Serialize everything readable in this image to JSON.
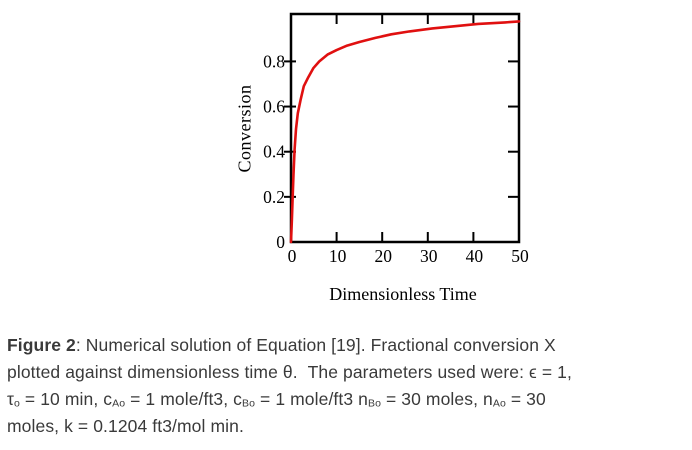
{
  "page": {
    "background": "#ffffff"
  },
  "chart_data": {
    "type": "line",
    "title": "",
    "xlabel": "Dimensionless Time",
    "ylabel": "Conversion",
    "xlim": [
      0,
      50
    ],
    "ylim": [
      0,
      1.01
    ],
    "x_ticks": [
      0,
      10,
      20,
      30,
      40,
      50
    ],
    "y_ticks": [
      0,
      0.2,
      0.4,
      0.6,
      0.8
    ],
    "grid": false,
    "legend": "none",
    "frame_color": "#000000",
    "tick_label_color": "#000000",
    "series": [
      {
        "name": "Fractional conversion X, numerical solution of Equation [19]",
        "color": "#e01010",
        "x": [
          0,
          0.2,
          0.35,
          0.55,
          0.8,
          1.1,
          1.5,
          2.1,
          2.8,
          3.8,
          4.9,
          6.2,
          8,
          10,
          12.3,
          15,
          18.5,
          22,
          26,
          31,
          36,
          41,
          47,
          50
        ],
        "y": [
          0,
          0.1,
          0.19,
          0.3,
          0.41,
          0.5,
          0.57,
          0.63,
          0.69,
          0.73,
          0.77,
          0.8,
          0.83,
          0.85,
          0.87,
          0.886,
          0.904,
          0.92,
          0.933,
          0.946,
          0.956,
          0.966,
          0.973,
          0.977
        ]
      }
    ]
  },
  "caption": {
    "text_color": "#3a3a3a",
    "lines": [
      [
        {
          "text": "Figure 2",
          "bold": true
        },
        {
          "text": ": Numerical solution of Equation [19]. Fractional conversion X"
        }
      ],
      [
        {
          "text": "plotted against dimensionless time θ.  The parameters used were: ϵ = 1,"
        }
      ],
      [
        {
          "text": "τ"
        },
        {
          "text": "o",
          "sub": true
        },
        {
          "text": " = 10 min, c"
        },
        {
          "text": "Ao",
          "sub": true
        },
        {
          "text": " = 1 mole/ft3, c"
        },
        {
          "text": "Bo",
          "sub": true
        },
        {
          "text": " = 1 mole/ft3 n"
        },
        {
          "text": "Bo",
          "sub": true
        },
        {
          "text": " = 30 moles, n"
        },
        {
          "text": "Ao",
          "sub": true
        },
        {
          "text": " = 30"
        }
      ],
      [
        {
          "text": "moles, k = 0.1204 ft3/mol min."
        }
      ]
    ]
  }
}
